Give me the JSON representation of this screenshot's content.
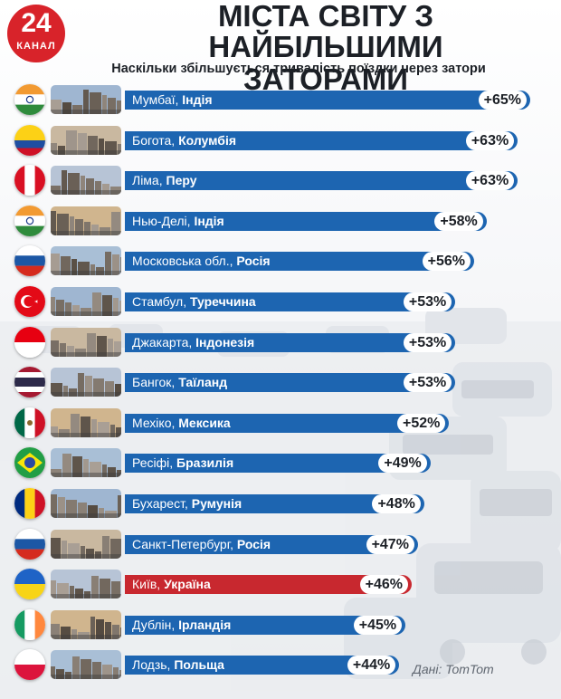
{
  "brand": {
    "number": "24",
    "name": "КАНАЛ"
  },
  "header": {
    "title_line1": "МІСТА СВІТУ З",
    "title_line2": "НАЙБІЛЬШИМИ ЗАТОРАМИ",
    "subtitle": "Наскільки збільшується тривалість поїздки через затори"
  },
  "colors": {
    "bar": "#1d65b1",
    "highlight": "#c8282f"
  },
  "chart_data": {
    "type": "bar",
    "orientation": "horizontal",
    "title": "МІСТА СВІТУ З НАЙБІЛЬШИМИ ЗАТОРАМИ",
    "subtitle": "Наскільки збільшується тривалість поїздки через затори",
    "unit": "%",
    "categories": [
      "Мумбаї, Індія",
      "Богота, Колумбія",
      "Ліма, Перу",
      "Нью-Делі, Індія",
      "Московська обл., Росія",
      "Стамбул, Туреччина",
      "Джакарта, Індонезія",
      "Бангок, Таїланд",
      "Мехіко, Мексика",
      "Ресіфі, Бразилія",
      "Бухарест, Румунія",
      "Санкт-Петербург, Росія",
      "Київ, Україна",
      "Дублін, Ірландія",
      "Лодзь, Польща"
    ],
    "values": [
      65,
      63,
      63,
      58,
      56,
      53,
      53,
      53,
      52,
      49,
      48,
      47,
      46,
      45,
      44
    ],
    "highlighted": "Київ, Україна",
    "items": [
      {
        "city": "Мумбаї",
        "country": "Індія",
        "value": 65,
        "value_label": "+65%",
        "flag": "india-flag",
        "highlight": false
      },
      {
        "city": "Богота",
        "country": "Колумбія",
        "value": 63,
        "value_label": "+63%",
        "flag": "colombia-flag",
        "highlight": false
      },
      {
        "city": "Ліма",
        "country": "Перу",
        "value": 63,
        "value_label": "+63%",
        "flag": "peru-flag",
        "highlight": false
      },
      {
        "city": "Нью-Делі",
        "country": "Індія",
        "value": 58,
        "value_label": "+58%",
        "flag": "india-flag",
        "highlight": false
      },
      {
        "city": "Московська обл.",
        "country": "Росія",
        "value": 56,
        "value_label": "+56%",
        "flag": "russia-flag",
        "highlight": false
      },
      {
        "city": "Стамбул",
        "country": "Туреччина",
        "value": 53,
        "value_label": "+53%",
        "flag": "turkey-flag",
        "highlight": false
      },
      {
        "city": "Джакарта",
        "country": "Індонезія",
        "value": 53,
        "value_label": "+53%",
        "flag": "indonesia-flag",
        "highlight": false
      },
      {
        "city": "Бангок",
        "country": "Таїланд",
        "value": 53,
        "value_label": "+53%",
        "flag": "thailand-flag",
        "highlight": false
      },
      {
        "city": "Мехіко",
        "country": "Мексика",
        "value": 52,
        "value_label": "+52%",
        "flag": "mexico-flag",
        "highlight": false
      },
      {
        "city": "Ресіфі",
        "country": "Бразилія",
        "value": 49,
        "value_label": "+49%",
        "flag": "brazil-flag",
        "highlight": false
      },
      {
        "city": "Бухарест",
        "country": "Румунія",
        "value": 48,
        "value_label": "+48%",
        "flag": "romania-flag",
        "highlight": false
      },
      {
        "city": "Санкт-Петербург",
        "country": "Росія",
        "value": 47,
        "value_label": "+47%",
        "flag": "russia-flag",
        "highlight": false
      },
      {
        "city": "Київ",
        "country": "Україна",
        "value": 46,
        "value_label": "+46%",
        "flag": "ukraine-flag",
        "highlight": true
      },
      {
        "city": "Дублін",
        "country": "Ірландія",
        "value": 45,
        "value_label": "+45%",
        "flag": "ireland-flag",
        "highlight": false
      },
      {
        "city": "Лодзь",
        "country": "Польща",
        "value": 44,
        "value_label": "+44%",
        "flag": "poland-flag",
        "highlight": false
      }
    ]
  },
  "source": "Дані: TomTom"
}
